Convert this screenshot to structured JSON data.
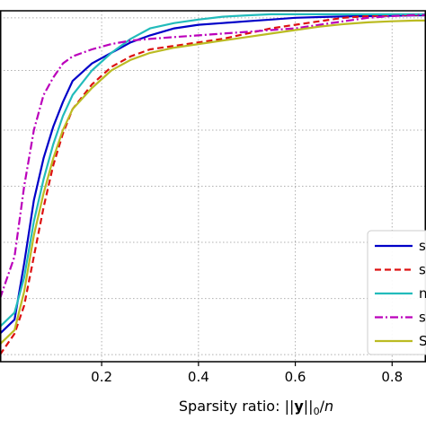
{
  "chart_data": {
    "type": "line",
    "xlabel_prefix": "Sparsity ratio: ||",
    "xlabel_bold": "y",
    "xlabel_sub": "0",
    "xlabel_suffix": "/",
    "xlabel_italic": "n",
    "xlim": [
      -0.01,
      0.87
    ],
    "ylim": [
      0,
      1
    ],
    "grid": true,
    "x_ticks": [
      0.2,
      0.4,
      0.6,
      0.8
    ],
    "x_tick_labels": [
      "0.2",
      "0.4",
      "0.6",
      "0.8"
    ],
    "y_grid": [
      0.02,
      0.18,
      0.34,
      0.5,
      0.66,
      0.83,
      0.98
    ],
    "legend_position": "lower-right",
    "series": [
      {
        "name": "s",
        "color": "#0000c8",
        "style": "solid",
        "x": [
          -0.01,
          0.02,
          0.04,
          0.06,
          0.08,
          0.1,
          0.12,
          0.14,
          0.18,
          0.22,
          0.26,
          0.3,
          0.35,
          0.4,
          0.45,
          0.5,
          0.55,
          0.6,
          0.65,
          0.7,
          0.75,
          0.8,
          0.85,
          0.87
        ],
        "y": [
          0.08,
          0.12,
          0.28,
          0.46,
          0.58,
          0.67,
          0.74,
          0.8,
          0.85,
          0.88,
          0.91,
          0.93,
          0.95,
          0.96,
          0.965,
          0.97,
          0.975,
          0.98,
          0.982,
          0.984,
          0.985,
          0.986,
          0.987,
          0.987
        ]
      },
      {
        "name": "s",
        "color": "#dd1111",
        "style": "dashed",
        "x": [
          -0.01,
          0.02,
          0.04,
          0.06,
          0.08,
          0.1,
          0.12,
          0.14,
          0.18,
          0.22,
          0.26,
          0.3,
          0.35,
          0.4,
          0.45,
          0.5,
          0.55,
          0.6,
          0.65,
          0.7,
          0.75,
          0.8,
          0.85,
          0.87
        ],
        "y": [
          0.02,
          0.08,
          0.16,
          0.3,
          0.44,
          0.56,
          0.65,
          0.72,
          0.79,
          0.84,
          0.87,
          0.89,
          0.9,
          0.91,
          0.92,
          0.935,
          0.95,
          0.96,
          0.97,
          0.98,
          0.985,
          0.987,
          0.988,
          0.988
        ]
      },
      {
        "name": "n",
        "color": "#22bbbb",
        "style": "solid",
        "x": [
          -0.01,
          0.02,
          0.04,
          0.06,
          0.08,
          0.1,
          0.12,
          0.14,
          0.18,
          0.22,
          0.26,
          0.3,
          0.35,
          0.4,
          0.45,
          0.5,
          0.55,
          0.6,
          0.65,
          0.7,
          0.75,
          0.8,
          0.85,
          0.87
        ],
        "y": [
          0.1,
          0.14,
          0.24,
          0.4,
          0.52,
          0.62,
          0.7,
          0.76,
          0.83,
          0.88,
          0.92,
          0.95,
          0.965,
          0.975,
          0.983,
          0.987,
          0.99,
          0.99,
          0.99,
          0.99,
          0.99,
          0.99,
          0.99,
          0.99
        ]
      },
      {
        "name": "s",
        "color": "#bb00bb",
        "style": "dashdot",
        "x": [
          -0.01,
          0.02,
          0.04,
          0.06,
          0.08,
          0.1,
          0.12,
          0.14,
          0.18,
          0.22,
          0.26,
          0.3,
          0.35,
          0.4,
          0.45,
          0.5,
          0.55,
          0.6,
          0.65,
          0.7,
          0.75,
          0.8,
          0.85,
          0.87
        ],
        "y": [
          0.18,
          0.3,
          0.5,
          0.66,
          0.76,
          0.81,
          0.85,
          0.87,
          0.89,
          0.905,
          0.915,
          0.92,
          0.925,
          0.93,
          0.935,
          0.94,
          0.945,
          0.95,
          0.96,
          0.97,
          0.98,
          0.985,
          0.988,
          0.988
        ]
      },
      {
        "name": "S",
        "color": "#bbbb22",
        "style": "solid",
        "x": [
          -0.01,
          0.02,
          0.04,
          0.06,
          0.08,
          0.1,
          0.12,
          0.14,
          0.18,
          0.22,
          0.26,
          0.3,
          0.35,
          0.4,
          0.45,
          0.5,
          0.55,
          0.6,
          0.65,
          0.7,
          0.75,
          0.8,
          0.85,
          0.87
        ],
        "y": [
          0.05,
          0.09,
          0.2,
          0.36,
          0.48,
          0.58,
          0.66,
          0.72,
          0.78,
          0.83,
          0.86,
          0.88,
          0.895,
          0.905,
          0.915,
          0.925,
          0.935,
          0.945,
          0.955,
          0.962,
          0.967,
          0.97,
          0.972,
          0.972
        ]
      }
    ]
  }
}
